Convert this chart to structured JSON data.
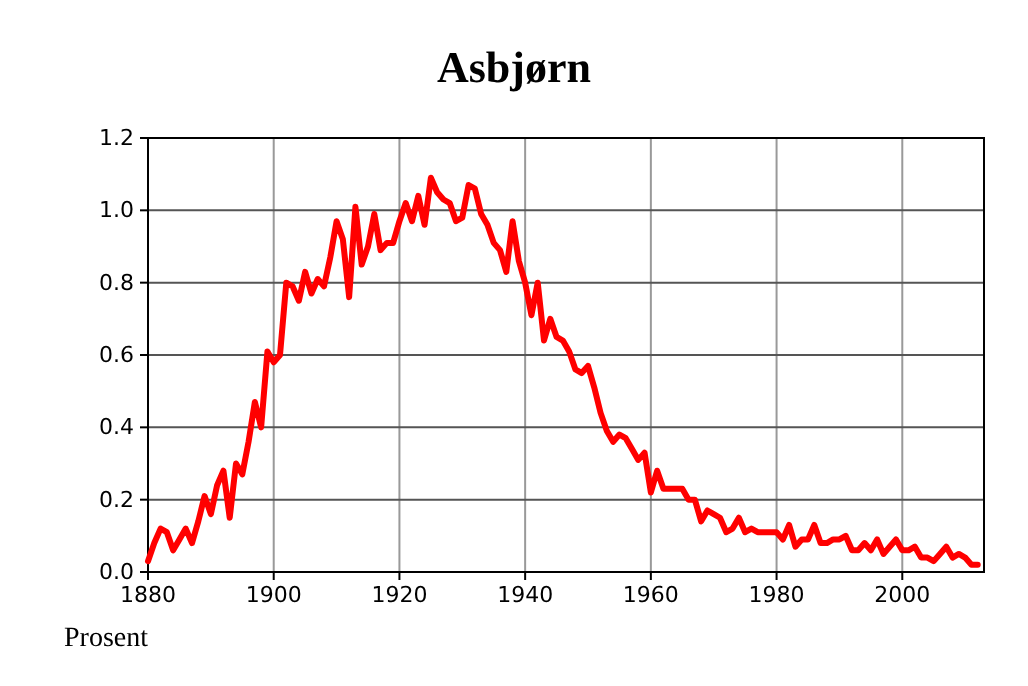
{
  "chart_data": {
    "type": "line",
    "title": "Asbjørn",
    "ylabel": "Prosent",
    "x": [
      1880,
      1881,
      1882,
      1883,
      1884,
      1885,
      1886,
      1887,
      1888,
      1889,
      1890,
      1891,
      1892,
      1893,
      1894,
      1895,
      1896,
      1897,
      1898,
      1899,
      1900,
      1901,
      1902,
      1903,
      1904,
      1905,
      1906,
      1907,
      1908,
      1909,
      1910,
      1911,
      1912,
      1913,
      1914,
      1915,
      1916,
      1917,
      1918,
      1919,
      1920,
      1921,
      1922,
      1923,
      1924,
      1925,
      1926,
      1927,
      1928,
      1929,
      1930,
      1931,
      1932,
      1933,
      1934,
      1935,
      1936,
      1937,
      1938,
      1939,
      1940,
      1941,
      1942,
      1943,
      1944,
      1945,
      1946,
      1947,
      1948,
      1949,
      1950,
      1951,
      1952,
      1953,
      1954,
      1955,
      1956,
      1957,
      1958,
      1959,
      1960,
      1961,
      1962,
      1963,
      1964,
      1965,
      1966,
      1967,
      1968,
      1969,
      1970,
      1971,
      1972,
      1973,
      1974,
      1975,
      1976,
      1977,
      1978,
      1979,
      1980,
      1981,
      1982,
      1983,
      1984,
      1985,
      1986,
      1987,
      1988,
      1989,
      1990,
      1991,
      1992,
      1993,
      1994,
      1995,
      1996,
      1997,
      1998,
      1999,
      2000,
      2001,
      2002,
      2003,
      2004,
      2005,
      2006,
      2007,
      2008,
      2009,
      2010,
      2011,
      2012
    ],
    "series": [
      {
        "color": "#ff0000",
        "values": [
          0.03,
          0.08,
          0.12,
          0.11,
          0.06,
          0.09,
          0.12,
          0.08,
          0.14,
          0.21,
          0.16,
          0.24,
          0.28,
          0.15,
          0.3,
          0.27,
          0.36,
          0.47,
          0.4,
          0.61,
          0.58,
          0.6,
          0.8,
          0.79,
          0.75,
          0.83,
          0.77,
          0.81,
          0.79,
          0.87,
          0.97,
          0.92,
          0.76,
          1.01,
          0.85,
          0.9,
          0.99,
          0.89,
          0.91,
          0.91,
          0.97,
          1.02,
          0.97,
          1.04,
          0.96,
          1.09,
          1.05,
          1.03,
          1.02,
          0.97,
          0.98,
          1.07,
          1.06,
          0.99,
          0.96,
          0.91,
          0.89,
          0.83,
          0.97,
          0.86,
          0.8,
          0.71,
          0.8,
          0.64,
          0.7,
          0.65,
          0.64,
          0.61,
          0.56,
          0.55,
          0.57,
          0.51,
          0.44,
          0.39,
          0.36,
          0.38,
          0.37,
          0.34,
          0.31,
          0.33,
          0.22,
          0.28,
          0.23,
          0.23,
          0.23,
          0.23,
          0.2,
          0.2,
          0.14,
          0.17,
          0.16,
          0.15,
          0.11,
          0.12,
          0.15,
          0.11,
          0.12,
          0.11,
          0.11,
          0.11,
          0.11,
          0.09,
          0.13,
          0.07,
          0.09,
          0.09,
          0.13,
          0.08,
          0.08,
          0.09,
          0.09,
          0.1,
          0.06,
          0.06,
          0.08,
          0.06,
          0.09,
          0.05,
          0.07,
          0.09,
          0.06,
          0.06,
          0.07,
          0.04,
          0.04,
          0.03,
          0.05,
          0.07,
          0.04,
          0.05,
          0.04,
          0.02,
          0.02
        ]
      }
    ],
    "xlim": [
      1880,
      2013
    ],
    "xticks": [
      1880,
      1900,
      1920,
      1940,
      1960,
      1980,
      2000
    ],
    "ylim": [
      0,
      1.2
    ],
    "yticks": [
      {
        "value": 0,
        "label": "0.0"
      },
      {
        "value": 0.2,
        "label": "0.2"
      },
      {
        "value": 0.4,
        "label": "0.4"
      },
      {
        "value": 0.6,
        "label": "0.6"
      },
      {
        "value": 0.8,
        "label": "0.8"
      },
      {
        "value": 1.0,
        "label": "1.0"
      },
      {
        "value": 1.2,
        "label": "1.2"
      }
    ],
    "grid": true,
    "marker": "none",
    "line_style": "solid"
  }
}
